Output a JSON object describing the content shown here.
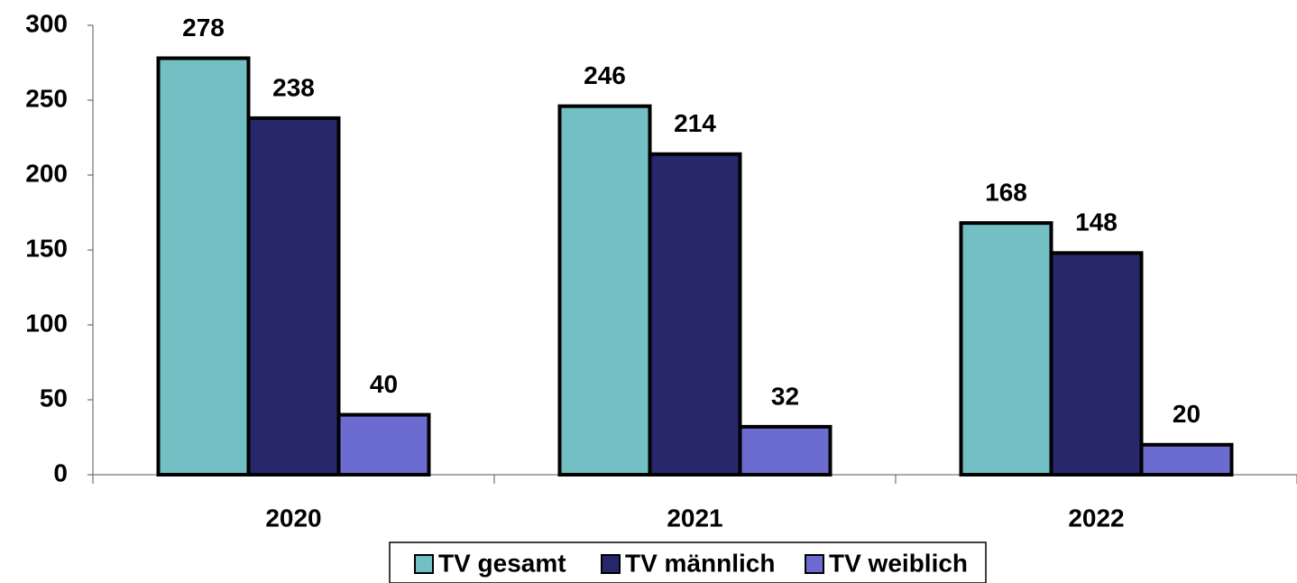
{
  "chart_data": {
    "type": "bar",
    "categories": [
      "2020",
      "2021",
      "2022"
    ],
    "series": [
      {
        "name": "TV gesamt",
        "color": "#72bfc4",
        "values": [
          278,
          246,
          168
        ]
      },
      {
        "name": "TV männlich",
        "color": "#27276b",
        "values": [
          238,
          214,
          148
        ]
      },
      {
        "name": "TV weiblich",
        "color": "#6b6bd0",
        "values": [
          40,
          32,
          20
        ]
      }
    ],
    "ylim": [
      0,
      300
    ],
    "yticks": [
      0,
      50,
      100,
      150,
      200,
      250,
      300
    ],
    "grid": false,
    "legend": "bottom"
  }
}
